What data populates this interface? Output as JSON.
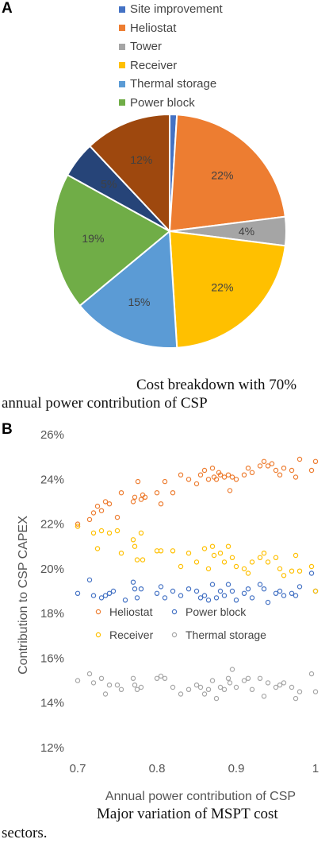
{
  "panel_a": {
    "letter": "A",
    "caption_line1": "Cost breakdown with 70%",
    "caption_line2": "annual power contribution of CSP"
  },
  "panel_b": {
    "letter": "B",
    "caption_line1": "Major variation of MSPT cost",
    "caption_line2": "sectors."
  },
  "chart_data": [
    {
      "type": "pie",
      "title": "",
      "slices": [
        {
          "name": "Site improvement",
          "value": 1,
          "label": "",
          "color": "#4472C4"
        },
        {
          "name": "Heliostat",
          "value": 22,
          "label": "22%",
          "color": "#ED7D31"
        },
        {
          "name": "Tower",
          "value": 4,
          "label": "4%",
          "color": "#A5A5A5"
        },
        {
          "name": "Receiver",
          "value": 22,
          "label": "22%",
          "color": "#FFC000"
        },
        {
          "name": "Thermal storage",
          "value": 15,
          "label": "15%",
          "color": "#5B9BD5"
        },
        {
          "name": "Power block",
          "value": 19,
          "label": "19%",
          "color": "#70AD47"
        },
        {
          "name": "",
          "value": 5,
          "label": "5%",
          "color": "#264478"
        },
        {
          "name": "",
          "value": 12,
          "label": "12%",
          "color": "#9E480E"
        }
      ],
      "legend_position": "top"
    },
    {
      "type": "scatter",
      "xlabel": "Annual power contribution of CSP",
      "ylabel": "Contribution to CSP CAPEX",
      "xlim": [
        0.7,
        1.0
      ],
      "ylim": [
        12,
        26
      ],
      "xticks": [
        "0.7",
        "0.8",
        "0.9",
        "1"
      ],
      "yticks": [
        "12%",
        "14%",
        "16%",
        "18%",
        "20%",
        "22%",
        "24%",
        "26%"
      ],
      "grid": false,
      "legend_position": "lower-center",
      "series": [
        {
          "name": "Heliostat",
          "color": "#ED7D31",
          "x": [
            0.7,
            0.7,
            0.715,
            0.72,
            0.725,
            0.73,
            0.735,
            0.74,
            0.75,
            0.755,
            0.77,
            0.772,
            0.776,
            0.78,
            0.782,
            0.785,
            0.8,
            0.805,
            0.81,
            0.82,
            0.83,
            0.84,
            0.85,
            0.855,
            0.86,
            0.865,
            0.87,
            0.872,
            0.875,
            0.878,
            0.88,
            0.885,
            0.89,
            0.892,
            0.895,
            0.9,
            0.91,
            0.915,
            0.92,
            0.93,
            0.935,
            0.94,
            0.945,
            0.95,
            0.955,
            0.96,
            0.97,
            0.975,
            0.98,
            0.995,
            1.0
          ],
          "y": [
            22.0,
            21.9,
            22.2,
            22.5,
            22.8,
            22.6,
            23.0,
            22.9,
            22.3,
            23.4,
            23.0,
            23.2,
            23.9,
            23.1,
            23.3,
            23.2,
            23.4,
            22.9,
            23.9,
            23.4,
            24.2,
            24.0,
            23.8,
            24.2,
            24.4,
            24.0,
            24.5,
            24.1,
            24.0,
            24.3,
            24.2,
            24.1,
            24.2,
            23.5,
            24.1,
            24.0,
            24.2,
            24.5,
            24.3,
            24.6,
            24.8,
            24.6,
            24.7,
            24.4,
            24.2,
            24.5,
            24.4,
            24.1,
            24.9,
            24.4,
            24.8
          ]
        },
        {
          "name": "Power block",
          "color": "#4472C4",
          "x": [
            0.7,
            0.715,
            0.72,
            0.73,
            0.735,
            0.74,
            0.745,
            0.76,
            0.77,
            0.772,
            0.775,
            0.78,
            0.8,
            0.805,
            0.81,
            0.82,
            0.83,
            0.84,
            0.85,
            0.855,
            0.86,
            0.865,
            0.87,
            0.875,
            0.88,
            0.885,
            0.89,
            0.895,
            0.9,
            0.91,
            0.915,
            0.92,
            0.93,
            0.935,
            0.94,
            0.95,
            0.955,
            0.96,
            0.97,
            0.975,
            0.98,
            0.995,
            1.0
          ],
          "y": [
            18.9,
            19.5,
            18.8,
            18.7,
            18.8,
            18.9,
            19.0,
            18.6,
            19.4,
            19.1,
            18.7,
            19.1,
            18.9,
            19.2,
            18.7,
            19.0,
            18.8,
            19.1,
            19.0,
            18.7,
            18.8,
            18.6,
            19.3,
            18.7,
            19.0,
            18.8,
            19.3,
            19.0,
            18.6,
            18.9,
            19.1,
            18.7,
            19.3,
            19.1,
            18.5,
            18.9,
            19.0,
            18.8,
            18.9,
            18.8,
            19.2,
            19.8,
            19.0
          ]
        },
        {
          "name": "Receiver",
          "color": "#FFC000",
          "x": [
            0.7,
            0.72,
            0.725,
            0.73,
            0.74,
            0.75,
            0.755,
            0.77,
            0.772,
            0.775,
            0.78,
            0.782,
            0.8,
            0.805,
            0.82,
            0.83,
            0.84,
            0.85,
            0.86,
            0.865,
            0.87,
            0.872,
            0.88,
            0.885,
            0.89,
            0.895,
            0.9,
            0.91,
            0.915,
            0.92,
            0.93,
            0.935,
            0.94,
            0.95,
            0.955,
            0.96,
            0.97,
            0.975,
            0.98,
            0.995,
            1.0
          ],
          "y": [
            21.9,
            21.6,
            20.9,
            21.7,
            21.6,
            21.7,
            20.7,
            21.3,
            21.0,
            20.4,
            21.6,
            20.4,
            20.8,
            20.8,
            20.8,
            20.1,
            20.7,
            20.3,
            20.9,
            20.0,
            21.0,
            20.6,
            20.7,
            20.3,
            21.0,
            20.5,
            20.1,
            20.0,
            19.8,
            20.3,
            20.5,
            20.7,
            20.3,
            20.5,
            20.0,
            19.7,
            19.9,
            20.6,
            19.9,
            20.1,
            19.0
          ]
        },
        {
          "name": "Thermal storage",
          "color": "#A5A5A5",
          "x": [
            0.7,
            0.715,
            0.72,
            0.73,
            0.735,
            0.74,
            0.75,
            0.755,
            0.77,
            0.772,
            0.775,
            0.78,
            0.8,
            0.805,
            0.81,
            0.82,
            0.83,
            0.84,
            0.85,
            0.855,
            0.86,
            0.865,
            0.87,
            0.875,
            0.88,
            0.885,
            0.89,
            0.892,
            0.895,
            0.9,
            0.91,
            0.915,
            0.92,
            0.93,
            0.935,
            0.94,
            0.95,
            0.955,
            0.96,
            0.97,
            0.975,
            0.98,
            0.995,
            1.0
          ],
          "y": [
            15.0,
            15.3,
            14.9,
            15.1,
            14.4,
            14.8,
            14.8,
            14.6,
            15.1,
            14.8,
            14.6,
            14.7,
            15.1,
            15.2,
            15.1,
            14.7,
            14.4,
            14.6,
            14.8,
            14.7,
            14.4,
            14.6,
            15.0,
            14.2,
            14.7,
            14.6,
            15.1,
            14.9,
            15.5,
            14.7,
            15.0,
            15.1,
            14.6,
            15.1,
            14.3,
            14.9,
            14.7,
            14.8,
            14.9,
            14.7,
            14.2,
            14.5,
            15.3,
            14.5
          ]
        }
      ]
    }
  ]
}
